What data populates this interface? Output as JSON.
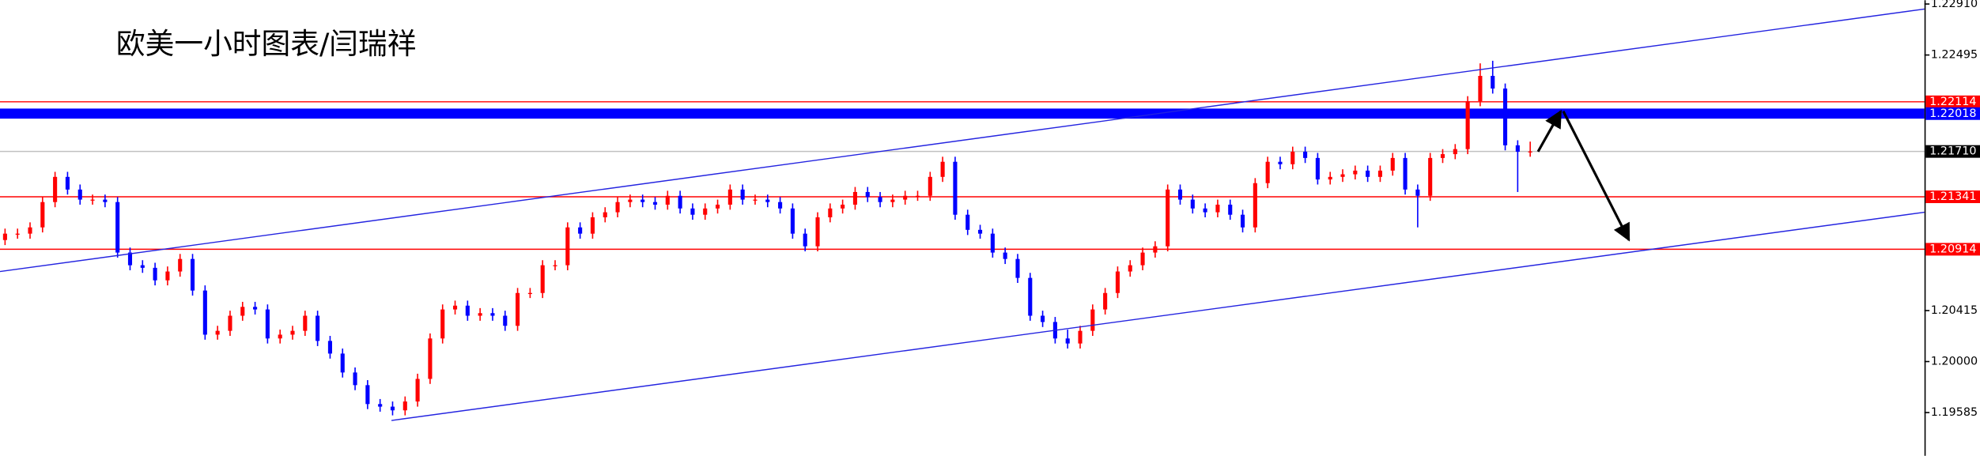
{
  "chart_data": {
    "type": "candlestick",
    "title": "欧美一小时图表/闫瑞祥",
    "ylim": [
      1.19233,
      1.22941
    ],
    "yticks": [
      {
        "value": 1.2291,
        "label": "1.22910"
      },
      1.22495,
      1.20415,
      {
        "value": 1.2,
        "label": "1.20000"
      },
      1.19585
    ],
    "up_color": "#ff0000",
    "down_color": "#0000ff",
    "level_lines": [
      {
        "value": 1.22114,
        "label": "1.22114",
        "color": "#ff0000"
      },
      {
        "value": 1.22018,
        "label": "1.22018",
        "color": "#0000ff"
      },
      {
        "value": 1.2171,
        "label": "1.21710",
        "color": "#000000"
      },
      {
        "value": 1.21341,
        "label": "1.21341",
        "color": "#ff0000"
      },
      {
        "value": 1.20914,
        "label": "1.20914",
        "color": "#ff0000"
      }
    ],
    "candles": [
      [
        1.20989,
        1.21082,
        1.20948,
        1.21041
      ],
      [
        1.21041,
        1.21082,
        1.21,
        1.21041
      ],
      [
        1.21041,
        1.21133,
        1.21,
        1.21092
      ],
      [
        1.21092,
        1.21339,
        1.21051,
        1.21298
      ],
      [
        1.21298,
        1.21544,
        1.21256,
        1.21503
      ],
      [
        1.21503,
        1.21544,
        1.21359,
        1.214
      ],
      [
        1.214,
        1.21441,
        1.21277,
        1.21318
      ],
      [
        1.21318,
        1.21359,
        1.21277,
        1.21318
      ],
      [
        1.21318,
        1.21359,
        1.21256,
        1.21298
      ],
      [
        1.21298,
        1.21339,
        1.20846,
        1.20887
      ],
      [
        1.20887,
        1.20928,
        1.20743,
        1.20784
      ],
      [
        1.20784,
        1.20825,
        1.20722,
        1.20763
      ],
      [
        1.20763,
        1.20804,
        1.2062,
        1.20661
      ],
      [
        1.20661,
        1.20774,
        1.2062,
        1.20733
      ],
      [
        1.20733,
        1.20876,
        1.20691,
        1.20835
      ],
      [
        1.20835,
        1.20876,
        1.20537,
        1.20578
      ],
      [
        1.20578,
        1.2062,
        1.20178,
        1.20219
      ],
      [
        1.20219,
        1.20291,
        1.20178,
        1.2025
      ],
      [
        1.2025,
        1.20414,
        1.20209,
        1.20373
      ],
      [
        1.20373,
        1.20486,
        1.20332,
        1.20445
      ],
      [
        1.20445,
        1.20486,
        1.20383,
        1.20424
      ],
      [
        1.20424,
        1.20465,
        1.20147,
        1.20188
      ],
      [
        1.20188,
        1.2026,
        1.20147,
        1.20219
      ],
      [
        1.20219,
        1.20291,
        1.20178,
        1.2025
      ],
      [
        1.2025,
        1.20414,
        1.20209,
        1.20373
      ],
      [
        1.20373,
        1.20414,
        1.20126,
        1.20168
      ],
      [
        1.20168,
        1.20209,
        1.20024,
        1.20065
      ],
      [
        1.20065,
        1.20106,
        1.1987,
        1.19911
      ],
      [
        1.19911,
        1.19952,
        1.19767,
        1.19808
      ],
      [
        1.19808,
        1.19849,
        1.19613,
        1.19654
      ],
      [
        1.19654,
        1.19695,
        1.19592,
        1.19633
      ],
      [
        1.19633,
        1.19675,
        1.19562,
        1.19603
      ],
      [
        1.19603,
        1.19716,
        1.19562,
        1.19675
      ],
      [
        1.19675,
        1.19901,
        1.19633,
        1.19859
      ],
      [
        1.19859,
        1.20229,
        1.19818,
        1.20188
      ],
      [
        1.20188,
        1.20465,
        1.20147,
        1.20424
      ],
      [
        1.20424,
        1.20496,
        1.20383,
        1.20455
      ],
      [
        1.20455,
        1.20496,
        1.20332,
        1.20373
      ],
      [
        1.20373,
        1.20435,
        1.20332,
        1.20394
      ],
      [
        1.20394,
        1.20435,
        1.20332,
        1.20373
      ],
      [
        1.20373,
        1.20414,
        1.2025,
        1.20291
      ],
      [
        1.20291,
        1.20599,
        1.2025,
        1.20558
      ],
      [
        1.20558,
        1.20599,
        1.20517,
        1.20558
      ],
      [
        1.20558,
        1.20825,
        1.20517,
        1.20784
      ],
      [
        1.20784,
        1.20825,
        1.20743,
        1.20784
      ],
      [
        1.20784,
        1.21133,
        1.20743,
        1.21092
      ],
      [
        1.21092,
        1.21133,
        1.21,
        1.21041
      ],
      [
        1.21041,
        1.21215,
        1.21,
        1.21174
      ],
      [
        1.21174,
        1.21256,
        1.21133,
        1.21215
      ],
      [
        1.21215,
        1.21339,
        1.21174,
        1.21298
      ],
      [
        1.21298,
        1.21359,
        1.21256,
        1.21318
      ],
      [
        1.21318,
        1.21359,
        1.21256,
        1.21298
      ],
      [
        1.21298,
        1.21339,
        1.21236,
        1.21277
      ],
      [
        1.21277,
        1.2139,
        1.21236,
        1.21349
      ],
      [
        1.21349,
        1.2139,
        1.21205,
        1.21246
      ],
      [
        1.21246,
        1.21287,
        1.21154,
        1.21195
      ],
      [
        1.21195,
        1.21287,
        1.21154,
        1.21246
      ],
      [
        1.21246,
        1.21318,
        1.21205,
        1.21277
      ],
      [
        1.21277,
        1.21441,
        1.21236,
        1.214
      ],
      [
        1.214,
        1.21441,
        1.21277,
        1.21318
      ],
      [
        1.21318,
        1.21359,
        1.21277,
        1.21318
      ],
      [
        1.21318,
        1.21359,
        1.21256,
        1.21298
      ],
      [
        1.21298,
        1.21339,
        1.21205,
        1.21246
      ],
      [
        1.21246,
        1.21287,
        1.21,
        1.21041
      ],
      [
        1.21041,
        1.21082,
        1.20897,
        1.20938
      ],
      [
        1.20938,
        1.21215,
        1.20897,
        1.21174
      ],
      [
        1.21174,
        1.21287,
        1.21133,
        1.21246
      ],
      [
        1.21246,
        1.21318,
        1.21205,
        1.21277
      ],
      [
        1.21277,
        1.21421,
        1.21236,
        1.2138
      ],
      [
        1.2138,
        1.21421,
        1.21298,
        1.21339
      ],
      [
        1.21339,
        1.2138,
        1.21256,
        1.21298
      ],
      [
        1.21298,
        1.21359,
        1.21256,
        1.21318
      ],
      [
        1.21318,
        1.2139,
        1.21277,
        1.21349
      ],
      [
        1.21349,
        1.2139,
        1.21308,
        1.21349
      ],
      [
        1.21349,
        1.21544,
        1.21308,
        1.21503
      ],
      [
        1.21503,
        1.21667,
        1.21462,
        1.21626
      ],
      [
        1.21626,
        1.21667,
        1.21154,
        1.21195
      ],
      [
        1.21195,
        1.21236,
        1.2103,
        1.21072
      ],
      [
        1.21072,
        1.21113,
        1.21,
        1.21041
      ],
      [
        1.21041,
        1.21082,
        1.20846,
        1.20887
      ],
      [
        1.20887,
        1.20928,
        1.20794,
        1.20835
      ],
      [
        1.20835,
        1.20876,
        1.2064,
        1.20681
      ],
      [
        1.20681,
        1.20722,
        1.20332,
        1.20373
      ],
      [
        1.20373,
        1.20414,
        1.20281,
        1.20322
      ],
      [
        1.20322,
        1.20363,
        1.20147,
        1.20188
      ],
      [
        1.20188,
        1.2026,
        1.20106,
        1.20147
      ],
      [
        1.20147,
        1.20291,
        1.20106,
        1.2025
      ],
      [
        1.2025,
        1.20465,
        1.20209,
        1.20424
      ],
      [
        1.20424,
        1.20599,
        1.20383,
        1.20558
      ],
      [
        1.20558,
        1.20774,
        1.20517,
        1.20733
      ],
      [
        1.20733,
        1.20825,
        1.20691,
        1.20784
      ],
      [
        1.20784,
        1.20928,
        1.20743,
        1.20887
      ],
      [
        1.20887,
        1.20979,
        1.20846,
        1.20938
      ],
      [
        1.20938,
        1.21441,
        1.20897,
        1.214
      ],
      [
        1.214,
        1.21441,
        1.21277,
        1.21318
      ],
      [
        1.21318,
        1.21359,
        1.21205,
        1.21246
      ],
      [
        1.21246,
        1.21287,
        1.21174,
        1.21215
      ],
      [
        1.21215,
        1.21318,
        1.21174,
        1.21277
      ],
      [
        1.21277,
        1.21318,
        1.21154,
        1.21195
      ],
      [
        1.21195,
        1.21236,
        1.21051,
        1.21092
      ],
      [
        1.21092,
        1.21493,
        1.21051,
        1.21452
      ],
      [
        1.21452,
        1.21667,
        1.21411,
        1.21626
      ],
      [
        1.21626,
        1.21667,
        1.21565,
        1.21606
      ],
      [
        1.21606,
        1.21749,
        1.21565,
        1.21708
      ],
      [
        1.21708,
        1.21749,
        1.21616,
        1.21657
      ],
      [
        1.21657,
        1.21698,
        1.21441,
        1.21482
      ],
      [
        1.21482,
        1.21544,
        1.21441,
        1.21503
      ],
      [
        1.21503,
        1.21565,
        1.21462,
        1.21524
      ],
      [
        1.21524,
        1.21595,
        1.21482,
        1.21554
      ],
      [
        1.21554,
        1.21595,
        1.21462,
        1.21503
      ],
      [
        1.21503,
        1.21595,
        1.21462,
        1.21554
      ],
      [
        1.21554,
        1.21698,
        1.21513,
        1.21657
      ],
      [
        1.21657,
        1.21698,
        1.21359,
        1.214
      ],
      [
        1.214,
        1.21441,
        1.21092,
        1.21349
      ],
      [
        1.21349,
        1.21698,
        1.21308,
        1.21657
      ],
      [
        1.21657,
        1.21729,
        1.21616,
        1.21688
      ],
      [
        1.21688,
        1.2177,
        1.21647,
        1.21729
      ],
      [
        1.21729,
        1.2216,
        1.21688,
        1.22119
      ],
      [
        1.22119,
        1.22427,
        1.22078,
        1.22325
      ],
      [
        1.22325,
        1.22448,
        1.22181,
        1.22222
      ],
      [
        1.22222,
        1.22263,
        1.21719,
        1.2176
      ],
      [
        1.2176,
        1.21801,
        1.2138,
        1.21708
      ],
      [
        1.21708,
        1.2179,
        1.21667,
        1.2171
      ]
    ]
  }
}
